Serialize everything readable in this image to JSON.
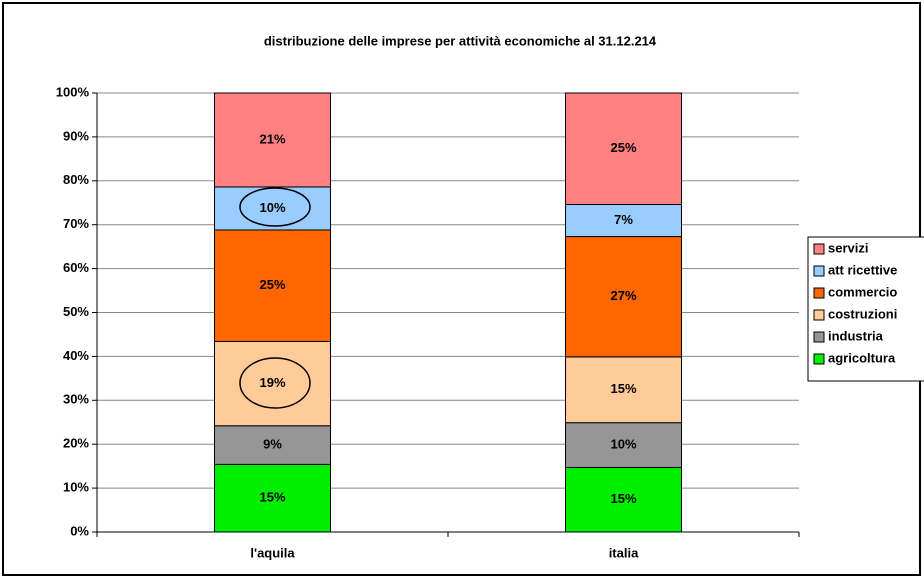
{
  "chart_data": {
    "type": "stacked_bar",
    "title": "distribuzione delle imprese per attività economiche al 31.12.214",
    "categories": [
      "l'aquila",
      "italia"
    ],
    "series": [
      {
        "name": "agricoltura",
        "color": "#00ee00",
        "values": [
          15.4,
          14.7
        ],
        "value_labels": [
          "15%",
          "15%"
        ]
      },
      {
        "name": "industria",
        "color": "#969696",
        "values": [
          8.8,
          10.2
        ],
        "value_labels": [
          "9%",
          "10%"
        ]
      },
      {
        "name": "costruzioni",
        "color": "#ffcc99",
        "values": [
          19.2,
          15.0
        ],
        "value_labels": [
          "19%",
          "15%"
        ]
      },
      {
        "name": "commercio",
        "color": "#ff6600",
        "values": [
          25.4,
          27.4
        ],
        "value_labels": [
          "25%",
          "27%"
        ]
      },
      {
        "name": "att ricettive",
        "color": "#99ccff",
        "values": [
          9.8,
          7.3
        ],
        "value_labels": [
          "10%",
          "7%"
        ]
      },
      {
        "name": "servizi",
        "color": "#ff8080",
        "values": [
          21.4,
          25.4
        ],
        "value_labels": [
          "21%",
          "25%"
        ]
      }
    ],
    "ylim": [
      0,
      100
    ],
    "yticks": [
      {
        "value": 0,
        "label": "0%"
      },
      {
        "value": 10,
        "label": "10%"
      },
      {
        "value": 20,
        "label": "20%"
      },
      {
        "value": 30,
        "label": "30%"
      },
      {
        "value": 40,
        "label": "40%"
      },
      {
        "value": 50,
        "label": "50%"
      },
      {
        "value": 60,
        "label": "60%"
      },
      {
        "value": 70,
        "label": "70%"
      },
      {
        "value": 80,
        "label": "80%"
      },
      {
        "value": 90,
        "label": "90%"
      },
      {
        "value": 100,
        "label": "100%"
      }
    ],
    "grid": true,
    "legend": "right"
  }
}
